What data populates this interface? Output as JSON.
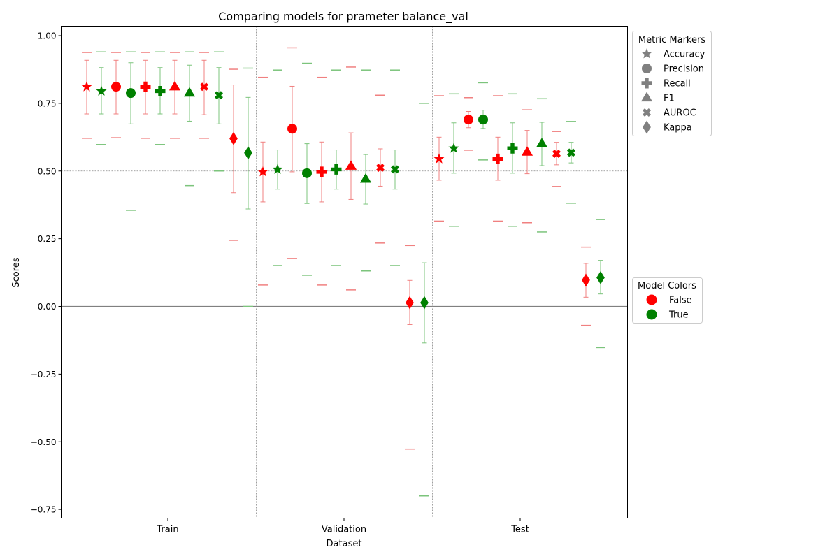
{
  "chart_data": {
    "type": "scatter",
    "title": "Comparing models for prameter balance_val",
    "xlabel": "Dataset",
    "ylabel": "Scores",
    "ylim": [
      -0.78,
      1.035
    ],
    "yticks": [
      1.0,
      0.75,
      0.5,
      0.25,
      0.0,
      -0.25,
      -0.5,
      -0.75
    ],
    "ytick_labels": [
      "1.00",
      "0.75",
      "0.50",
      "0.25",
      "0.00",
      "−0.25",
      "−0.50",
      "−0.75"
    ],
    "categories": [
      "Train",
      "Validation",
      "Test"
    ],
    "reference_lines": [
      0.5,
      0.0
    ],
    "metric_legend": {
      "title": "Metric Markers",
      "items": [
        {
          "label": "Accuracy",
          "marker": "star"
        },
        {
          "label": "Precision",
          "marker": "circle"
        },
        {
          "label": "Recall",
          "marker": "plus"
        },
        {
          "label": "F1",
          "marker": "triangle"
        },
        {
          "label": "AUROC",
          "marker": "x"
        },
        {
          "label": "Kappa",
          "marker": "diamond"
        }
      ]
    },
    "model_legend": {
      "title": "Model Colors",
      "items": [
        {
          "label": "False",
          "color": "#ff0000"
        },
        {
          "label": "True",
          "color": "#008000"
        }
      ]
    },
    "colors": {
      "False": "#ff0000",
      "True": "#008000",
      "False_light": "#f08080",
      "True_light": "#7cc47c"
    },
    "points": [
      {
        "dataset": "Train",
        "metric": "Accuracy",
        "model": "False",
        "value": 0.811,
        "err_low": 0.711,
        "err_high": 0.909,
        "min": 0.621,
        "max": 0.938
      },
      {
        "dataset": "Train",
        "metric": "Accuracy",
        "model": "True",
        "value": 0.795,
        "err_low": 0.711,
        "err_high": 0.882,
        "min": 0.598,
        "max": 0.94
      },
      {
        "dataset": "Train",
        "metric": "Precision",
        "model": "False",
        "value": 0.811,
        "err_low": 0.711,
        "err_high": 0.909,
        "min": 0.623,
        "max": 0.938
      },
      {
        "dataset": "Train",
        "metric": "Precision",
        "model": "True",
        "value": 0.788,
        "err_low": 0.674,
        "err_high": 0.9,
        "min": 0.355,
        "max": 0.94
      },
      {
        "dataset": "Train",
        "metric": "Recall",
        "model": "False",
        "value": 0.811,
        "err_low": 0.711,
        "err_high": 0.909,
        "min": 0.621,
        "max": 0.938
      },
      {
        "dataset": "Train",
        "metric": "Recall",
        "model": "True",
        "value": 0.795,
        "err_low": 0.711,
        "err_high": 0.882,
        "min": 0.598,
        "max": 0.94
      },
      {
        "dataset": "Train",
        "metric": "F1",
        "model": "False",
        "value": 0.811,
        "err_low": 0.711,
        "err_high": 0.909,
        "min": 0.621,
        "max": 0.938
      },
      {
        "dataset": "Train",
        "metric": "F1",
        "model": "True",
        "value": 0.788,
        "err_low": 0.684,
        "err_high": 0.891,
        "min": 0.446,
        "max": 0.94
      },
      {
        "dataset": "Train",
        "metric": "AUROC",
        "model": "False",
        "value": 0.811,
        "err_low": 0.708,
        "err_high": 0.909,
        "min": 0.621,
        "max": 0.938
      },
      {
        "dataset": "Train",
        "metric": "AUROC",
        "model": "True",
        "value": 0.78,
        "err_low": 0.674,
        "err_high": 0.882,
        "min": 0.5,
        "max": 0.94
      },
      {
        "dataset": "Train",
        "metric": "Kappa",
        "model": "False",
        "value": 0.62,
        "err_low": 0.42,
        "err_high": 0.818,
        "min": 0.244,
        "max": 0.876
      },
      {
        "dataset": "Train",
        "metric": "Kappa",
        "model": "True",
        "value": 0.567,
        "err_low": 0.36,
        "err_high": 0.772,
        "min": 0.0,
        "max": 0.88
      },
      {
        "dataset": "Validation",
        "metric": "Accuracy",
        "model": "False",
        "value": 0.497,
        "err_low": 0.386,
        "err_high": 0.607,
        "min": 0.079,
        "max": 0.846
      },
      {
        "dataset": "Validation",
        "metric": "Accuracy",
        "model": "True",
        "value": 0.506,
        "err_low": 0.433,
        "err_high": 0.578,
        "min": 0.151,
        "max": 0.873
      },
      {
        "dataset": "Validation",
        "metric": "Precision",
        "model": "False",
        "value": 0.656,
        "err_low": 0.497,
        "err_high": 0.813,
        "min": 0.177,
        "max": 0.955
      },
      {
        "dataset": "Validation",
        "metric": "Precision",
        "model": "True",
        "value": 0.492,
        "err_low": 0.38,
        "err_high": 0.601,
        "min": 0.115,
        "max": 0.898
      },
      {
        "dataset": "Validation",
        "metric": "Recall",
        "model": "False",
        "value": 0.497,
        "err_low": 0.386,
        "err_high": 0.607,
        "min": 0.079,
        "max": 0.846
      },
      {
        "dataset": "Validation",
        "metric": "Recall",
        "model": "True",
        "value": 0.506,
        "err_low": 0.433,
        "err_high": 0.578,
        "min": 0.151,
        "max": 0.873
      },
      {
        "dataset": "Validation",
        "metric": "F1",
        "model": "False",
        "value": 0.518,
        "err_low": 0.395,
        "err_high": 0.641,
        "min": 0.061,
        "max": 0.884
      },
      {
        "dataset": "Validation",
        "metric": "F1",
        "model": "True",
        "value": 0.47,
        "err_low": 0.378,
        "err_high": 0.561,
        "min": 0.131,
        "max": 0.873
      },
      {
        "dataset": "Validation",
        "metric": "AUROC",
        "model": "False",
        "value": 0.512,
        "err_low": 0.444,
        "err_high": 0.582,
        "min": 0.234,
        "max": 0.78
      },
      {
        "dataset": "Validation",
        "metric": "AUROC",
        "model": "True",
        "value": 0.506,
        "err_low": 0.433,
        "err_high": 0.578,
        "min": 0.151,
        "max": 0.873
      },
      {
        "dataset": "Validation",
        "metric": "Kappa",
        "model": "False",
        "value": 0.014,
        "err_low": -0.067,
        "err_high": 0.096,
        "min": -0.527,
        "max": 0.225
      },
      {
        "dataset": "Validation",
        "metric": "Kappa",
        "model": "True",
        "value": 0.014,
        "err_low": -0.135,
        "err_high": 0.161,
        "min": -0.7,
        "max": 0.75
      },
      {
        "dataset": "Test",
        "metric": "Accuracy",
        "model": "False",
        "value": 0.545,
        "err_low": 0.466,
        "err_high": 0.625,
        "min": 0.315,
        "max": 0.778
      },
      {
        "dataset": "Test",
        "metric": "Accuracy",
        "model": "True",
        "value": 0.584,
        "err_low": 0.492,
        "err_high": 0.678,
        "min": 0.296,
        "max": 0.785
      },
      {
        "dataset": "Test",
        "metric": "Precision",
        "model": "False",
        "value": 0.69,
        "err_low": 0.66,
        "err_high": 0.72,
        "min": 0.577,
        "max": 0.771
      },
      {
        "dataset": "Test",
        "metric": "Precision",
        "model": "True",
        "value": 0.69,
        "err_low": 0.657,
        "err_high": 0.725,
        "min": 0.541,
        "max": 0.826
      },
      {
        "dataset": "Test",
        "metric": "Recall",
        "model": "False",
        "value": 0.545,
        "err_low": 0.466,
        "err_high": 0.625,
        "min": 0.315,
        "max": 0.778
      },
      {
        "dataset": "Test",
        "metric": "Recall",
        "model": "True",
        "value": 0.584,
        "err_low": 0.492,
        "err_high": 0.678,
        "min": 0.296,
        "max": 0.785
      },
      {
        "dataset": "Test",
        "metric": "F1",
        "model": "False",
        "value": 0.57,
        "err_low": 0.49,
        "err_high": 0.65,
        "min": 0.309,
        "max": 0.726
      },
      {
        "dataset": "Test",
        "metric": "F1",
        "model": "True",
        "value": 0.601,
        "err_low": 0.52,
        "err_high": 0.68,
        "min": 0.275,
        "max": 0.767
      },
      {
        "dataset": "Test",
        "metric": "AUROC",
        "model": "False",
        "value": 0.564,
        "err_low": 0.523,
        "err_high": 0.606,
        "min": 0.443,
        "max": 0.646
      },
      {
        "dataset": "Test",
        "metric": "AUROC",
        "model": "True",
        "value": 0.568,
        "err_low": 0.53,
        "err_high": 0.606,
        "min": 0.381,
        "max": 0.683
      },
      {
        "dataset": "Test",
        "metric": "Kappa",
        "model": "False",
        "value": 0.097,
        "err_low": 0.034,
        "err_high": 0.159,
        "min": -0.07,
        "max": 0.219
      },
      {
        "dataset": "Test",
        "metric": "Kappa",
        "model": "True",
        "value": 0.106,
        "err_low": 0.046,
        "err_high": 0.17,
        "min": -0.152,
        "max": 0.321
      }
    ]
  }
}
